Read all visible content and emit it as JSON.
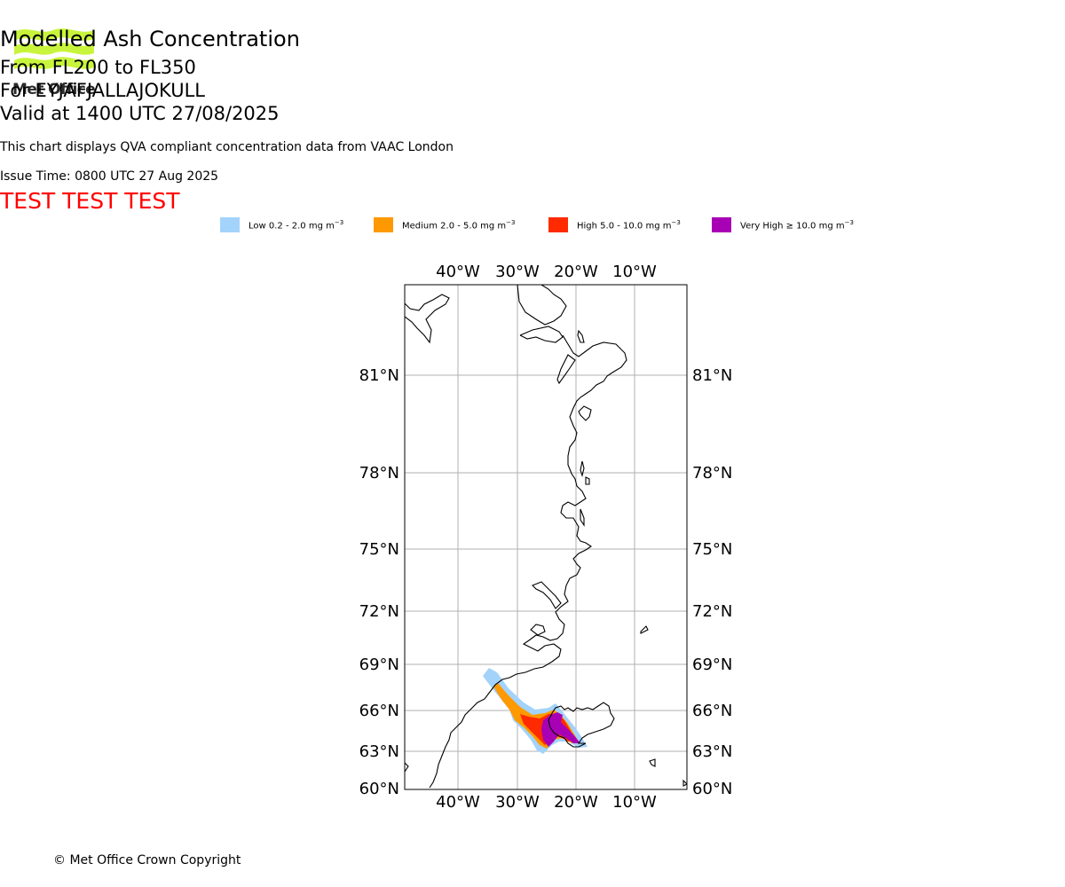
{
  "logo": {
    "text": "Met Office"
  },
  "header": {
    "title": "Modelled Ash Concentration",
    "levels": "From FL200 to FL350",
    "volcano": "For EYJAFJALLAJOKULL",
    "valid": "Valid at 1400 UTC 27/08/2025",
    "subtitle": "This chart displays QVA compliant concentration data from VAAC London",
    "issue_time": "Issue Time: 0800 UTC 27 Aug 2025",
    "test_banner": "TEST TEST TEST"
  },
  "legend": [
    {
      "label": "Low 0.2 - 2.0 mg m",
      "sup": "−3",
      "color": "#a3d3fb"
    },
    {
      "label": "Medium 2.0 - 5.0 mg m",
      "sup": "−3",
      "color": "#ff9900"
    },
    {
      "label": "High 5.0 - 10.0 mg m",
      "sup": "−3",
      "color": "#ff2a00"
    },
    {
      "label": "Very High  ≥  10.0 mg m",
      "sup": "−3",
      "color": "#a800b5"
    }
  ],
  "map": {
    "lon_labels": [
      "40°W",
      "30°W",
      "20°W",
      "10°W"
    ],
    "lat_labels": [
      "81°N",
      "78°N",
      "75°N",
      "72°N",
      "69°N",
      "66°N",
      "63°N",
      "60°N"
    ]
  },
  "footer": {
    "copyright": "© Met Office Crown Copyright"
  }
}
